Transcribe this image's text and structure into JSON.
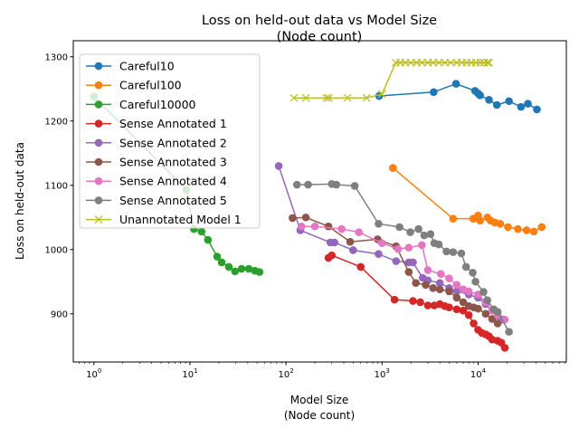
{
  "chart_data": {
    "type": "line",
    "title": "Loss on held-out data vs Model Size\n(Node count)",
    "xlabel": "Model Size\n(Node count)",
    "ylabel": "Loss on held-out data",
    "xscale": "log",
    "xlim": [
      0.61,
      83000
    ],
    "ylim": [
      825,
      1325
    ],
    "xtick_labels": [
      "10^0",
      "10^1",
      "10^2",
      "10^3",
      "10^4"
    ],
    "xtick_values": [
      1,
      10,
      100,
      1000,
      10000
    ],
    "ytick_values": [
      900,
      1000,
      1100,
      1200,
      1300
    ],
    "grid": false,
    "legend_position": "upper-left",
    "series": [
      {
        "name": "Careful10",
        "color": "#1f77b4",
        "marker": "o",
        "x": [
          933,
          3450,
          5900,
          9300,
          10000,
          10500,
          13000,
          15700,
          21000,
          28000,
          33000,
          41000
        ],
        "y": [
          1239,
          1245,
          1258,
          1247,
          1243,
          1240,
          1233,
          1225,
          1231,
          1222,
          1227,
          1218
        ]
      },
      {
        "name": "Careful100",
        "color": "#ff7f0e",
        "marker": "o",
        "x": [
          1300,
          5500,
          8900,
          10000,
          10500,
          12500,
          13500,
          15000,
          17000,
          20500,
          26000,
          32000,
          38000,
          46000
        ],
        "y": [
          1127,
          1048,
          1048,
          1053,
          1045,
          1050,
          1045,
          1042,
          1040,
          1035,
          1032,
          1030,
          1028,
          1035
        ]
      },
      {
        "name": "Careful10000",
        "color": "#2ca02c",
        "marker": "o",
        "x": [
          1,
          9.2,
          11,
          13.2,
          15.4,
          19.2,
          21.4,
          25.4,
          29.5,
          34.5,
          41,
          47.5,
          53
        ],
        "y": [
          1238,
          1093,
          1032,
          1028,
          1015,
          989,
          980,
          973,
          966,
          970,
          970,
          967,
          965
        ]
      },
      {
        "name": "Sense Annotated 1",
        "color": "#d62728",
        "marker": "o",
        "x": [
          277,
          300,
          600,
          1350,
          2100,
          2500,
          3000,
          3500,
          4000,
          4500,
          5000,
          6000,
          7000,
          8000,
          9000,
          10000,
          11000,
          12000,
          13000,
          14000,
          16000,
          17500,
          19000
        ],
        "y": [
          987,
          991,
          973,
          922,
          920,
          918,
          913,
          913,
          915,
          912,
          910,
          907,
          905,
          898,
          885,
          875,
          870,
          868,
          865,
          860,
          858,
          855,
          847
        ]
      },
      {
        "name": "Sense Annotated 2",
        "color": "#9467bd",
        "marker": "o",
        "x": [
          84,
          141,
          290,
          320,
          500,
          920,
          1400,
          1900,
          2100,
          2650,
          3000,
          4000,
          5000,
          6000,
          8000,
          10000,
          12000,
          14000,
          16000,
          18000
        ],
        "y": [
          1130,
          1030,
          1011,
          1011,
          999,
          993,
          982,
          980,
          980,
          956,
          952,
          948,
          940,
          935,
          930,
          925,
          915,
          905,
          897,
          891
        ]
      },
      {
        "name": "Sense Annotated 3",
        "color": "#8c564b",
        "marker": "o",
        "x": [
          117,
          161,
          277,
          466,
          900,
          1400,
          1900,
          2250,
          2850,
          3400,
          4000,
          5000,
          6000,
          7000,
          8000,
          9000,
          10000,
          12000,
          14000,
          16000
        ],
        "y": [
          1049,
          1050,
          1036,
          1012,
          1016,
          1005,
          965,
          948,
          945,
          940,
          938,
          935,
          925,
          918,
          912,
          910,
          908,
          900,
          892,
          885
        ]
      },
      {
        "name": "Sense Annotated 4",
        "color": "#e377c2",
        "marker": "o",
        "x": [
          145,
          200,
          380,
          575,
          1000,
          1470,
          1900,
          2600,
          3000,
          4100,
          5000,
          6000,
          7000,
          8000,
          10000,
          12000,
          14000,
          16000,
          19000
        ],
        "y": [
          1036,
          1036,
          1032,
          1027,
          1010,
          1001,
          1003,
          1007,
          968,
          962,
          955,
          945,
          938,
          935,
          930,
          918,
          905,
          898,
          891
        ]
      },
      {
        "name": "Sense Annotated 5",
        "color": "#7f7f7f",
        "marker": "o",
        "x": [
          130,
          170,
          300,
          335,
          520,
          920,
          1520,
          1970,
          2400,
          2750,
          3200,
          3500,
          3900,
          4700,
          5500,
          6700,
          7500,
          8800,
          9400,
          11400,
          12500,
          14600,
          16000,
          21000
        ],
        "y": [
          1101,
          1101,
          1102,
          1101,
          1099,
          1040,
          1035,
          1027,
          1032,
          1022,
          1024,
          1010,
          1008,
          997,
          996,
          994,
          973,
          964,
          950,
          934,
          921,
          907,
          903,
          872
        ]
      },
      {
        "name": "Unannotated Model 1",
        "color": "#bcbd22",
        "marker": "x",
        "x": [
          121,
          161,
          265,
          280,
          437,
          690,
          1000,
          1390,
          1550,
          1750,
          2000,
          2300,
          2600,
          3000,
          3400,
          3900,
          4500,
          5200,
          6000,
          6800,
          7600,
          8500,
          9500,
          10500,
          11500,
          12500,
          13000
        ],
        "y": [
          1236,
          1236,
          1236,
          1236,
          1236,
          1236,
          1242,
          1291,
          1291,
          1291,
          1291,
          1291,
          1291,
          1291,
          1291,
          1291,
          1291,
          1291,
          1291,
          1291,
          1291,
          1291,
          1291,
          1291,
          1291,
          1291,
          1291
        ]
      }
    ]
  }
}
